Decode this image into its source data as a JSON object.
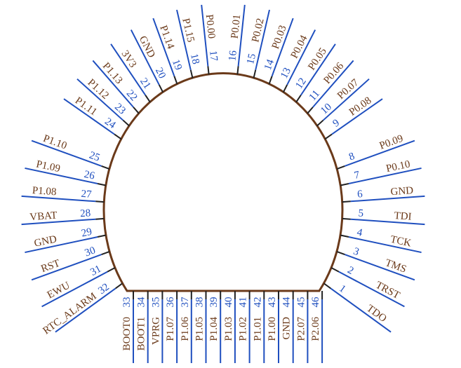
{
  "pins": [
    {
      "number": 1,
      "label": "TDO"
    },
    {
      "number": 2,
      "label": "TRST"
    },
    {
      "number": 3,
      "label": "TMS"
    },
    {
      "number": 4,
      "label": "TCK"
    },
    {
      "number": 5,
      "label": "TDI"
    },
    {
      "number": 6,
      "label": "GND"
    },
    {
      "number": 7,
      "label": "P0.10"
    },
    {
      "number": 8,
      "label": "P0.09"
    },
    {
      "number": 9,
      "label": "P0.08"
    },
    {
      "number": 10,
      "label": "P0.07"
    },
    {
      "number": 11,
      "label": "P0.06"
    },
    {
      "number": 12,
      "label": "P0.05"
    },
    {
      "number": 13,
      "label": "P0.04"
    },
    {
      "number": 14,
      "label": "P0.03"
    },
    {
      "number": 15,
      "label": "P0.02"
    },
    {
      "number": 16,
      "label": "P0.01"
    },
    {
      "number": 17,
      "label": "P0.00"
    },
    {
      "number": 18,
      "label": "P1.15"
    },
    {
      "number": 19,
      "label": "P1.14"
    },
    {
      "number": 20,
      "label": "GND"
    },
    {
      "number": 21,
      "label": "3V3"
    },
    {
      "number": 22,
      "label": "P1.13"
    },
    {
      "number": 23,
      "label": "P1.12"
    },
    {
      "number": 24,
      "label": "P1.11"
    },
    {
      "number": 25,
      "label": "P1.10"
    },
    {
      "number": 26,
      "label": "P1.09"
    },
    {
      "number": 27,
      "label": "P1.08"
    },
    {
      "number": 28,
      "label": "VBAT"
    },
    {
      "number": 29,
      "label": "GND"
    },
    {
      "number": 30,
      "label": "RST"
    },
    {
      "number": 31,
      "label": "EWU"
    },
    {
      "number": 32,
      "label": "RTC_ALARM"
    },
    {
      "number": 33,
      "label": "BOOT0"
    },
    {
      "number": 34,
      "label": "BOOT1"
    },
    {
      "number": 35,
      "label": "VPRG"
    },
    {
      "number": 36,
      "label": "P1.07"
    },
    {
      "number": 37,
      "label": "P1.06"
    },
    {
      "number": 38,
      "label": "P1.05"
    },
    {
      "number": 39,
      "label": "P1.04"
    },
    {
      "number": 40,
      "label": "P1.03"
    },
    {
      "number": 41,
      "label": "P1.02"
    },
    {
      "number": 42,
      "label": "P1.01"
    },
    {
      "number": 43,
      "label": "P1.00"
    },
    {
      "number": 44,
      "label": "GND"
    },
    {
      "number": 45,
      "label": "P2.07"
    },
    {
      "number": 46,
      "label": "P2.06"
    }
  ]
}
